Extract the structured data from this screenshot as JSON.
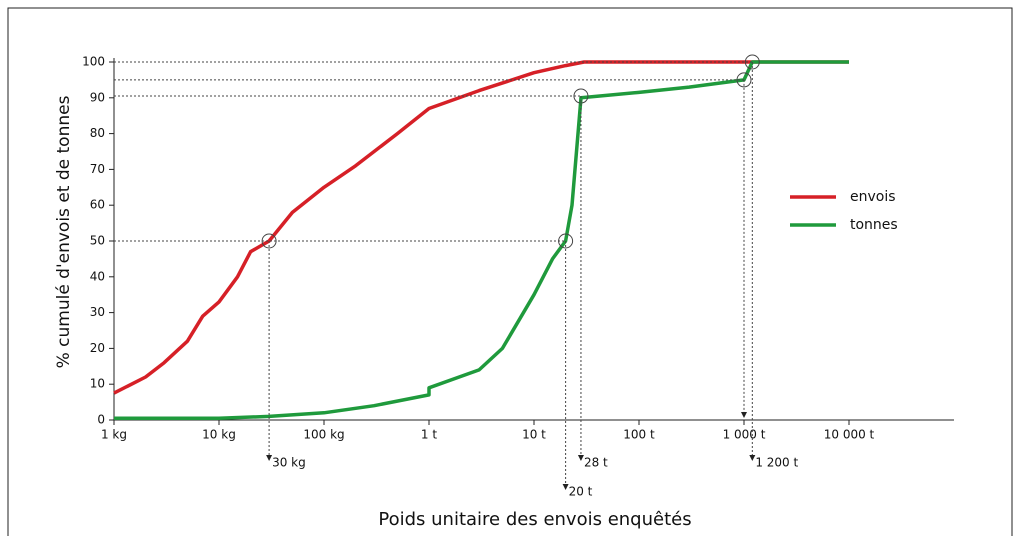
{
  "chart_data": {
    "type": "line",
    "y_label": "% cumulé d'envois et de tonnes",
    "x_label": "Poids unitaire des envois enquêtés",
    "log_x": true,
    "xlim": [
      1,
      100000000
    ],
    "xticks": [
      {
        "value": 1,
        "label": "1 kg"
      },
      {
        "value": 10,
        "label": "10 kg"
      },
      {
        "value": 100,
        "label": "100 kg"
      },
      {
        "value": 1000,
        "label": "1 t"
      },
      {
        "value": 10000,
        "label": "10 t"
      },
      {
        "value": 100000,
        "label": "100 t"
      },
      {
        "value": 1000000,
        "label": "1 000 t"
      },
      {
        "value": 10000000,
        "label": "10 000 t"
      }
    ],
    "ylim": [
      0,
      100
    ],
    "yticks": [
      0,
      10,
      20,
      30,
      40,
      50,
      60,
      70,
      80,
      90,
      100
    ],
    "legend": "right",
    "series": [
      {
        "name": "envois",
        "color": "#d62027",
        "x": [
          1,
          2,
          3,
          5,
          7,
          10,
          15,
          20,
          30,
          50,
          100,
          200,
          500,
          1000,
          3000,
          10000,
          20000,
          30000,
          10000000
        ],
        "values": [
          7.5,
          12,
          16,
          22,
          29,
          33,
          40,
          47,
          50,
          58,
          65,
          71,
          80,
          87,
          92,
          97,
          99,
          100,
          100
        ]
      },
      {
        "name": "tonnes",
        "color": "#1f9a3c",
        "x": [
          1,
          10,
          30,
          100,
          300,
          1000,
          1001,
          3000,
          5000,
          10000,
          15000,
          20000,
          23000,
          28000,
          100000,
          300000,
          1000000,
          1200000,
          10000000
        ],
        "values": [
          0.5,
          0.5,
          1,
          2,
          4,
          7,
          9,
          14,
          20,
          35,
          45,
          50,
          60,
          90,
          91.5,
          93,
          95,
          100,
          100
        ]
      }
    ],
    "annotations": [
      {
        "x": 30,
        "y": 50,
        "label": "30 kg"
      },
      {
        "x": 20000,
        "y": 50,
        "label": "20 t"
      },
      {
        "x": 28000,
        "y": 90.5,
        "label": "28 t"
      },
      {
        "x": 1000000,
        "y": 95
      },
      {
        "x": 1200000,
        "y": 100,
        "label": "1 200 t"
      }
    ]
  }
}
